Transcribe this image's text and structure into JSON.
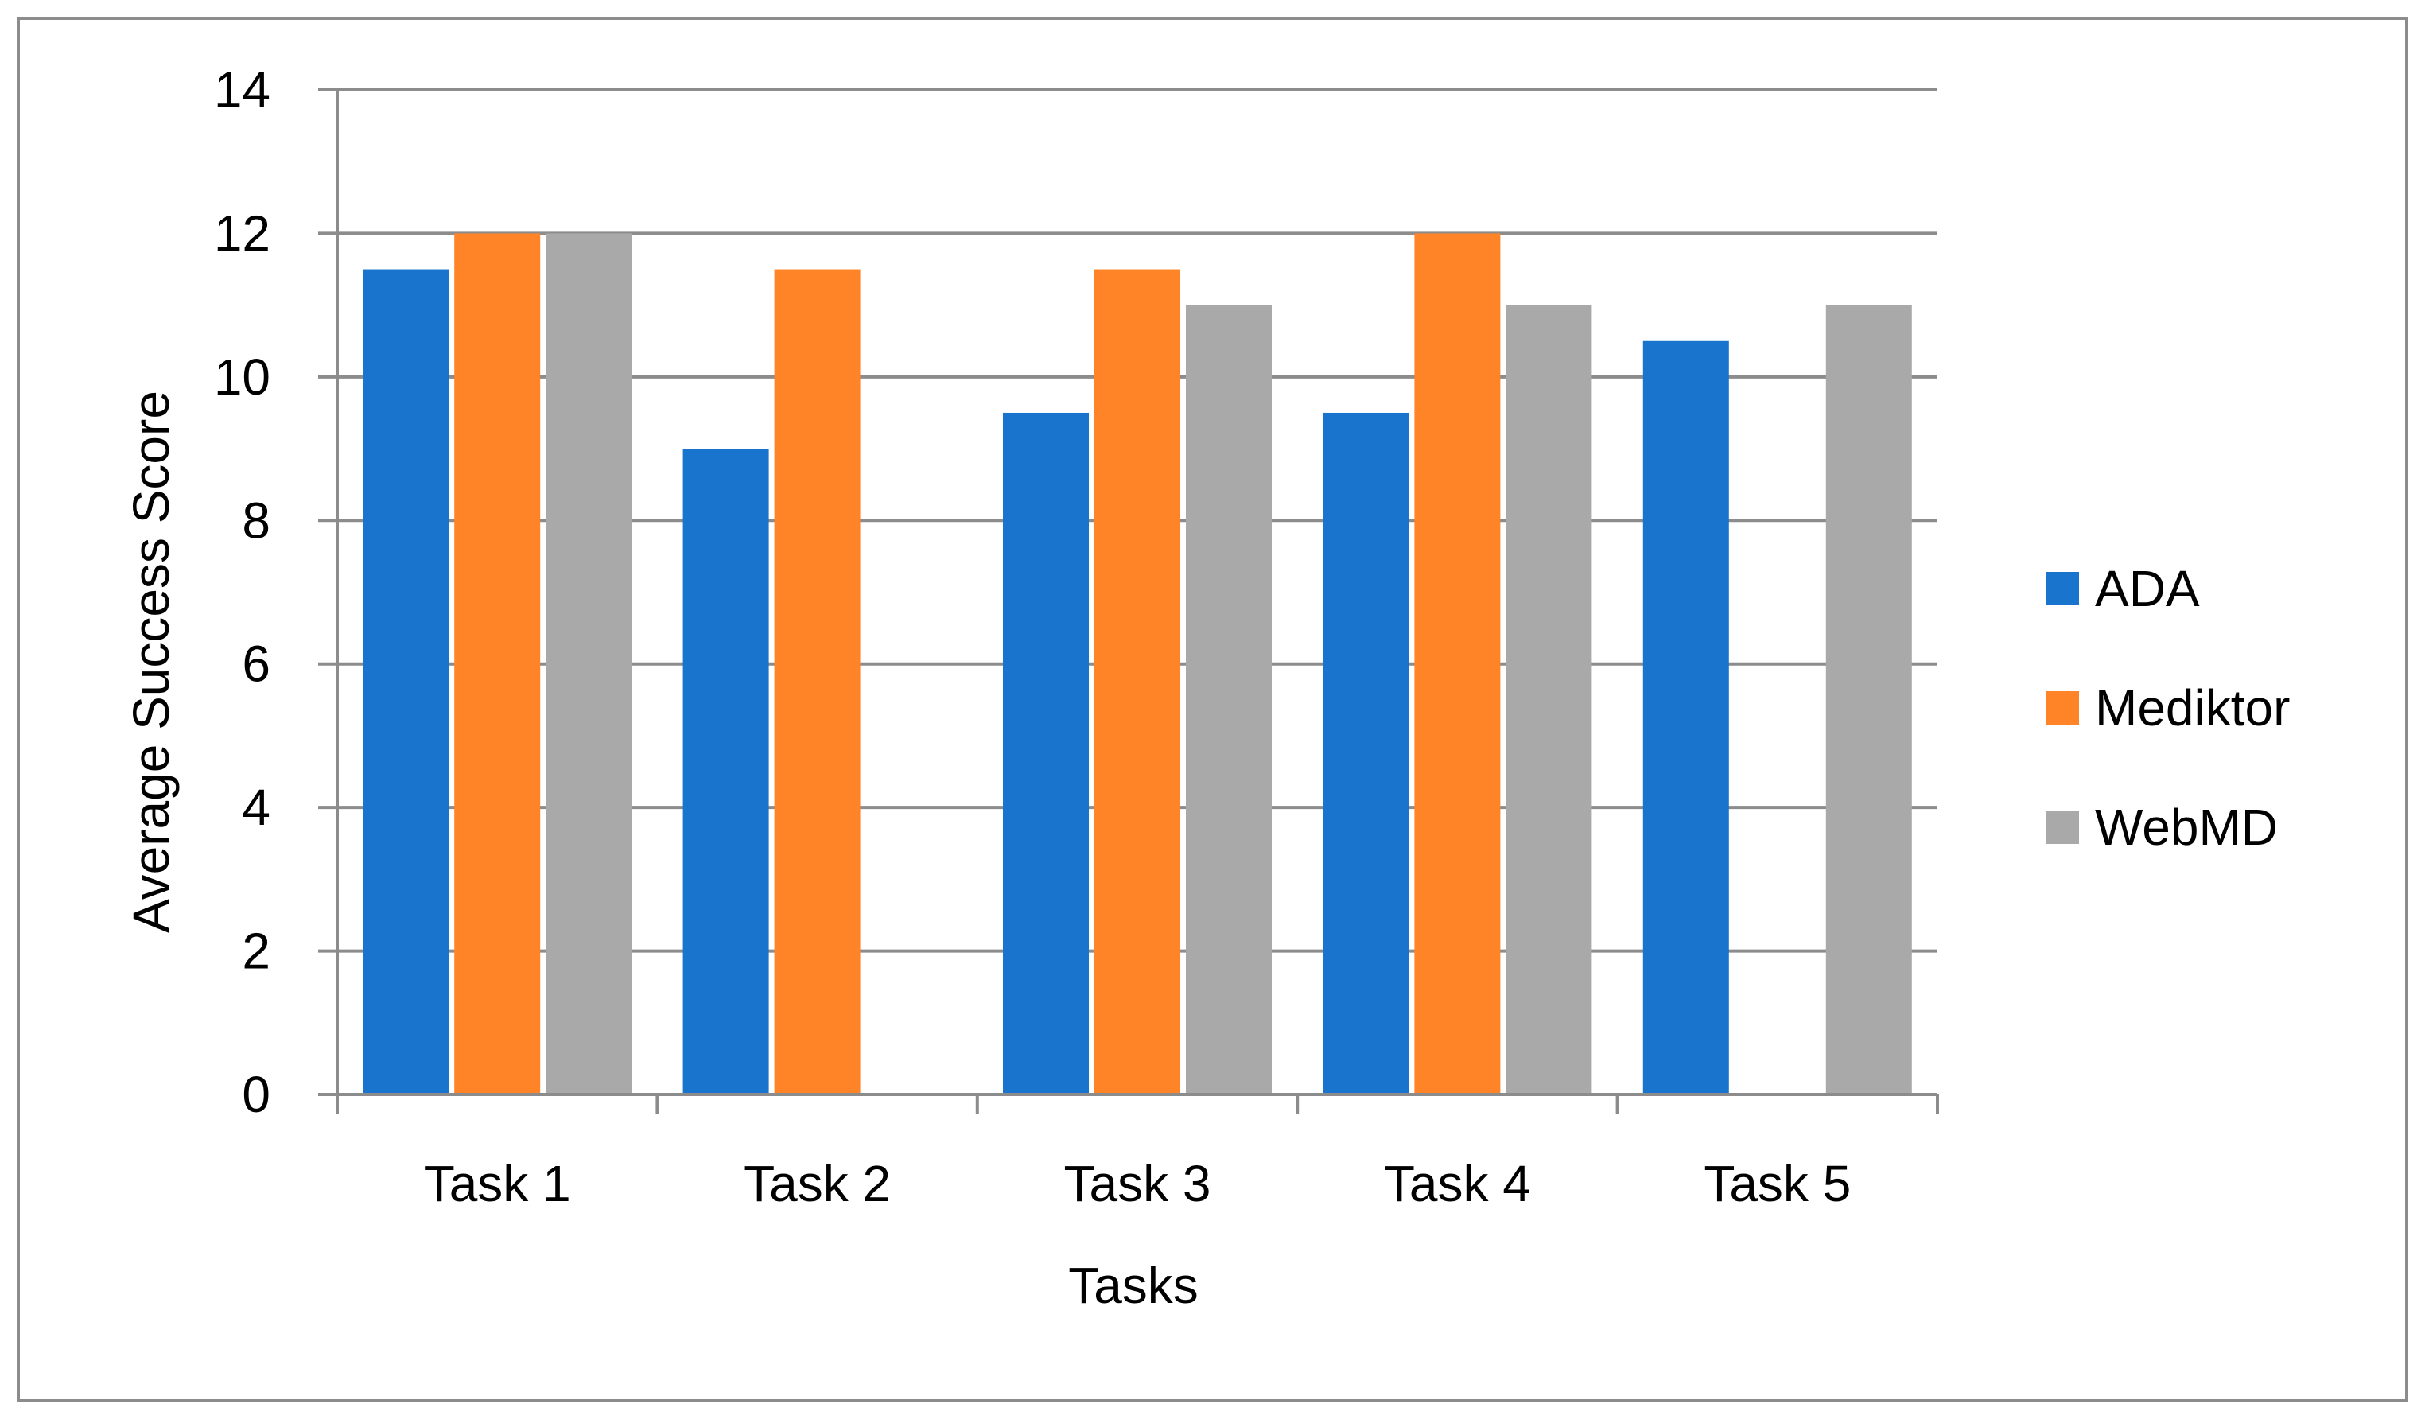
{
  "chart_data": {
    "type": "bar",
    "title": "",
    "xlabel": "Tasks",
    "ylabel": "Average Success Score",
    "categories": [
      "Task 1",
      "Task 2",
      "Task 3",
      "Task 4",
      "Task 5"
    ],
    "series": [
      {
        "name": "ADA",
        "color": "#1874CD",
        "values": [
          11.5,
          9,
          9.5,
          9.5,
          10.5
        ]
      },
      {
        "name": "Mediktor",
        "color": "#FF8427",
        "values": [
          12,
          11.5,
          11.5,
          12,
          0
        ]
      },
      {
        "name": "WebMD",
        "color": "#A9A9A9",
        "values": [
          12,
          0,
          11,
          11,
          11
        ]
      }
    ],
    "ylim": [
      0,
      14
    ],
    "yticks": [
      "0",
      "2",
      "4",
      "6",
      "8",
      "10",
      "12",
      "14"
    ],
    "grid": true,
    "legend": "right"
  }
}
